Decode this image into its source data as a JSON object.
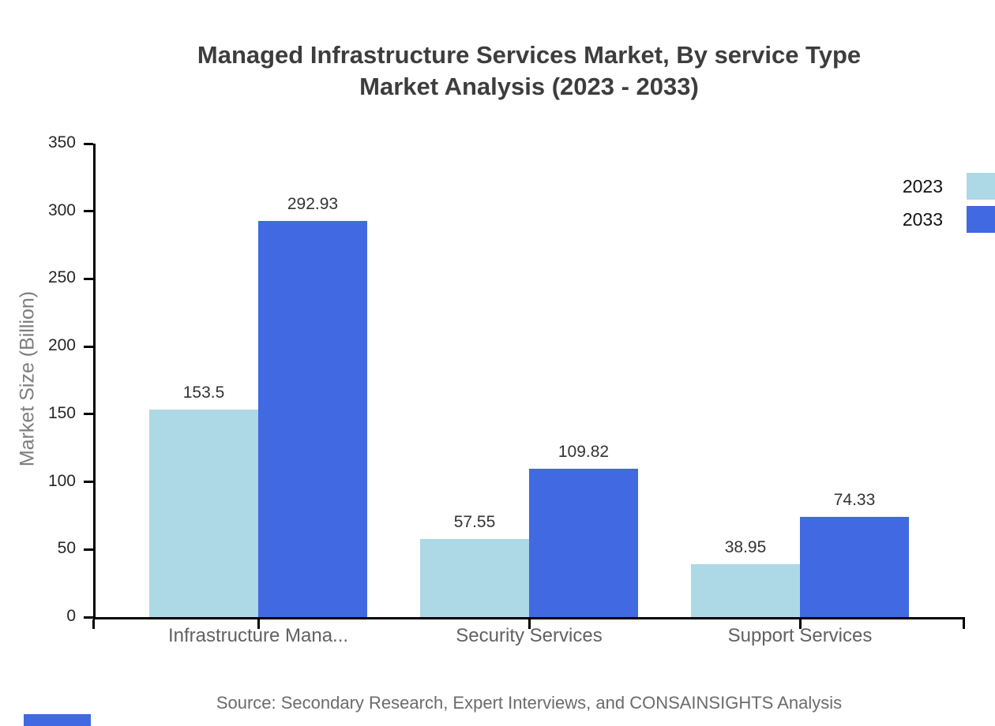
{
  "title": {
    "line1": "Managed Infrastructure Services Market, By service Type",
    "line2": "Market Analysis (2023 - 2033)"
  },
  "source": "Source: Secondary Research, Expert Interviews, and CONSAINSIGHTS Analysis",
  "legend": [
    {
      "label": "2023",
      "color": "#ADD8E6"
    },
    {
      "label": "2033",
      "color": "#4169E1"
    }
  ],
  "colors": {
    "series_2023": "#ADD8E6",
    "series_2033": "#4169E1",
    "axis": "#000000",
    "title_text": "#3d3d3d",
    "muted_text": "#6b6b6b"
  },
  "chart_data": {
    "type": "bar",
    "title": "Managed Infrastructure Services Market, By service Type Market Analysis (2023 - 2033)",
    "categories": [
      "Infrastructure Mana...",
      "Security Services",
      "Support Services"
    ],
    "series": [
      {
        "name": "2023",
        "color": "#ADD8E6",
        "values": [
          153.5,
          57.55,
          38.95
        ]
      },
      {
        "name": "2033",
        "color": "#4169E1",
        "values": [
          292.93,
          109.82,
          74.33
        ]
      }
    ],
    "value_labels": [
      [
        "153.5",
        "57.55",
        "38.95"
      ],
      [
        "292.93",
        "109.82",
        "74.33"
      ]
    ],
    "xlabel": "",
    "ylabel": "Market Size (Billion)",
    "ylim": [
      0,
      350
    ],
    "yticks": [
      0,
      50,
      100,
      150,
      200,
      250,
      300,
      350
    ],
    "grid": false,
    "legend_position": "top-right"
  }
}
